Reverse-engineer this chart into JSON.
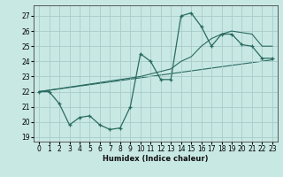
{
  "xlabel": "Humidex (Indice chaleur)",
  "bg_color": "#c8e8e4",
  "grid_color": "#a8cccc",
  "line_color": "#2a6b60",
  "xlim": [
    -0.5,
    23.5
  ],
  "ylim": [
    18.7,
    27.7
  ],
  "xticks": [
    0,
    1,
    2,
    3,
    4,
    5,
    6,
    7,
    8,
    9,
    10,
    11,
    12,
    13,
    14,
    15,
    16,
    17,
    18,
    19,
    20,
    21,
    22,
    23
  ],
  "yticks": [
    19,
    20,
    21,
    22,
    23,
    24,
    25,
    26,
    27
  ],
  "line1_x": [
    0,
    1,
    2,
    3,
    4,
    5,
    6,
    7,
    8,
    9,
    10,
    11,
    12,
    13,
    14,
    15,
    16,
    17,
    18,
    19,
    20,
    21,
    22,
    23
  ],
  "line1_y": [
    22.0,
    22.0,
    21.2,
    19.8,
    20.3,
    20.4,
    19.8,
    19.5,
    19.6,
    21.0,
    24.5,
    24.0,
    22.8,
    22.8,
    27.0,
    27.2,
    26.3,
    25.0,
    25.8,
    25.8,
    25.1,
    25.0,
    24.2,
    24.2
  ],
  "line2_x": [
    0,
    10,
    13,
    14,
    15,
    16,
    17,
    18,
    19,
    20,
    21,
    22,
    23
  ],
  "line2_y": [
    22.0,
    23.0,
    23.5,
    24.0,
    24.3,
    25.0,
    25.5,
    25.8,
    26.0,
    25.9,
    25.8,
    25.0,
    25.0
  ],
  "line3_x": [
    0,
    23
  ],
  "line3_y": [
    22.0,
    24.1
  ]
}
